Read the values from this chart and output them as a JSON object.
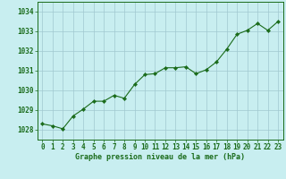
{
  "x": [
    0,
    1,
    2,
    3,
    4,
    5,
    6,
    7,
    8,
    9,
    10,
    11,
    12,
    13,
    14,
    15,
    16,
    17,
    18,
    19,
    20,
    21,
    22,
    23
  ],
  "y": [
    1028.3,
    1028.2,
    1028.05,
    1028.7,
    1029.05,
    1029.45,
    1029.45,
    1029.75,
    1029.6,
    1030.3,
    1030.8,
    1030.85,
    1031.15,
    1031.15,
    1031.2,
    1030.85,
    1031.05,
    1031.45,
    1032.1,
    1032.85,
    1033.05,
    1033.4,
    1033.05,
    1033.5
  ],
  "line_color": "#1a6b1a",
  "marker": "D",
  "marker_size": 2.2,
  "bg_color": "#c8eef0",
  "grid_color": "#a0c8d0",
  "xlabel": "Graphe pression niveau de la mer (hPa)",
  "xlabel_color": "#1a6b1a",
  "tick_color": "#1a6b1a",
  "ylim": [
    1027.5,
    1034.5
  ],
  "xlim": [
    -0.5,
    23.5
  ],
  "yticks": [
    1028,
    1029,
    1030,
    1031,
    1032,
    1033,
    1034
  ],
  "xticks": [
    0,
    1,
    2,
    3,
    4,
    5,
    6,
    7,
    8,
    9,
    10,
    11,
    12,
    13,
    14,
    15,
    16,
    17,
    18,
    19,
    20,
    21,
    22,
    23
  ],
  "tick_fontsize": 5.5,
  "xlabel_fontsize": 6.0
}
